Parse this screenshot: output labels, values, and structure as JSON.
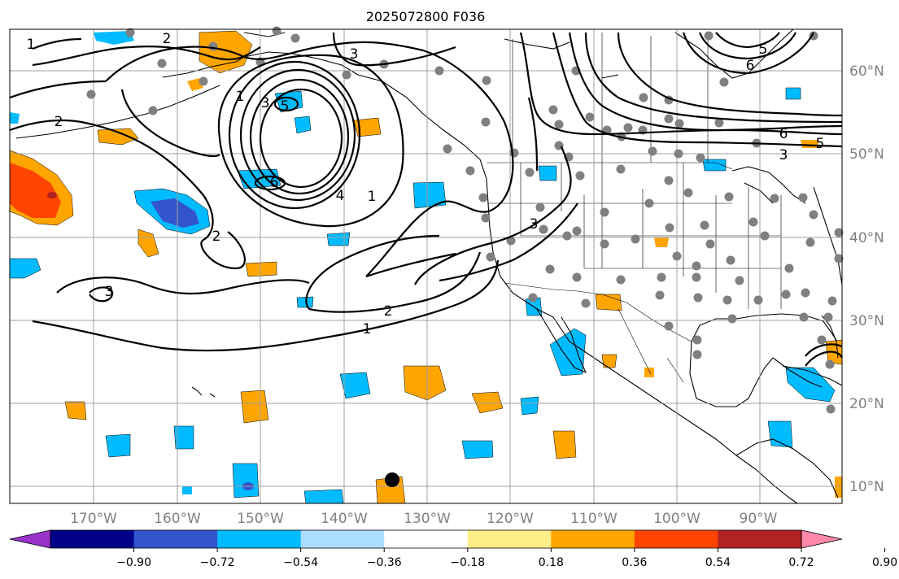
{
  "title": "2025072800 F036",
  "longitude_labels": [
    "170°W",
    "160°W",
    "150°W",
    "140°W",
    "130°W",
    "120°W",
    "110°W",
    "100°W",
    "90°W"
  ],
  "latitude_labels": [
    "60°N",
    "50°N",
    "40°N",
    "30°N",
    "20°N",
    "10°N"
  ],
  "contour_labels": [
    "1",
    "2",
    "3",
    "4",
    "5",
    "6"
  ],
  "colorbar": {
    "tick_labels": [
      "−0.90",
      "−0.72",
      "−0.54",
      "−0.36",
      "−0.18",
      "0.18",
      "0.36",
      "0.54",
      "0.72",
      "0.90"
    ],
    "colors": [
      "#9933cc",
      "#000088",
      "#3355cc",
      "#00bbff",
      "#aaddff",
      "#ffffff",
      "#ffee88",
      "#ffa500",
      "#ff4400",
      "#b22222",
      "#ff88aa"
    ]
  },
  "colors": {
    "gridline": "#a0a0a0",
    "station_dot": "#808080",
    "marker": "#000000"
  }
}
